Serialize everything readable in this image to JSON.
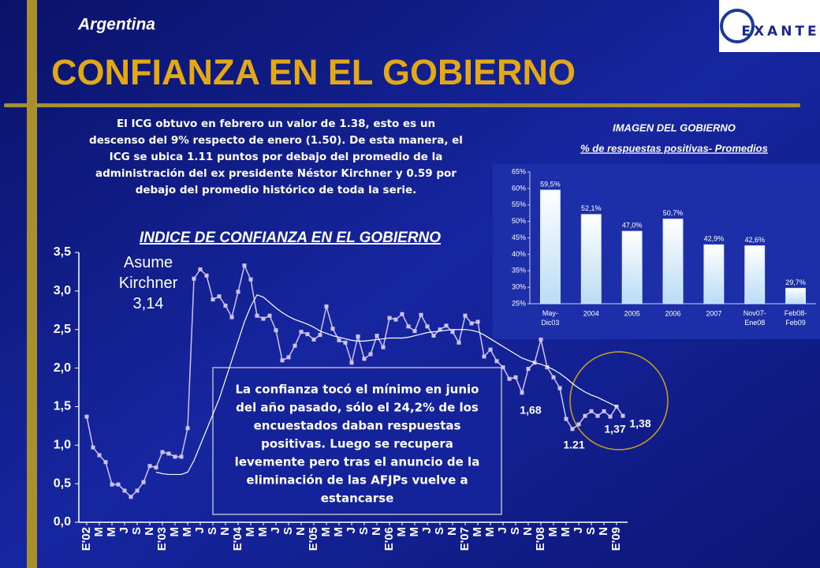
{
  "header": {
    "country": "Argentina",
    "title": "CONFIANZA EN EL GOBIERNO",
    "logo": "EXANTE"
  },
  "summary": [
    "El ICG obtuvo en febrero un valor de 1.38, esto es un",
    "descenso del 9% respecto de enero (1.50). De esta manera, el",
    "ICG se ubica 1.11 puntos por debajo del promedio de la",
    "administración del ex presidente Néstor Kirchner y 0.59 por",
    "debajo del promedio histórico de toda la serie."
  ],
  "callout": [
    "La confianza tocó el mínimo en junio",
    "del año pasado, sólo el 24,2% de los",
    "encuestados daban respuestas",
    "positivas. Luego se recupera",
    "levemente pero tras el anuncio de la",
    "eliminación de las AFJPs vuelve a",
    "estancarse"
  ],
  "chart_data": [
    {
      "type": "line",
      "title": "INDICE DE CONFIANZA EN EL GOBIERNO",
      "categories": [
        "E'02",
        null,
        "M",
        null,
        "M",
        null,
        "J",
        null,
        "S",
        null,
        "N",
        null,
        "E'03",
        null,
        "M",
        null,
        "M",
        null,
        "J",
        null,
        "S",
        null,
        "N",
        null,
        "E'04",
        null,
        "M",
        null,
        "M",
        null,
        "J",
        null,
        "S",
        null,
        "N",
        null,
        "E'05",
        null,
        "M",
        null,
        "M",
        null,
        "J",
        null,
        "S",
        null,
        "N",
        null,
        "E'06",
        null,
        "M",
        null,
        "M",
        null,
        "J",
        null,
        "S",
        null,
        "N",
        null,
        "E'07",
        null,
        "M",
        null,
        "M",
        null,
        "J",
        null,
        "S",
        null,
        "N",
        null,
        "E'08",
        null,
        "M",
        null,
        "M",
        null,
        "J",
        null,
        "S",
        null,
        "N",
        null,
        "E'09",
        null
      ],
      "series": [
        {
          "color": "#cfc2f2",
          "marker": true,
          "values": [
            1.37,
            0.97,
            0.87,
            0.78,
            0.49,
            0.49,
            0.41,
            0.33,
            0.41,
            0.52,
            0.73,
            0.71,
            0.91,
            0.89,
            0.85,
            0.85,
            1.22,
            3.16,
            3.28,
            3.2,
            2.89,
            2.93,
            2.81,
            2.66,
            2.99,
            3.33,
            3.15,
            2.68,
            2.64,
            2.68,
            2.49,
            2.1,
            2.14,
            2.29,
            2.47,
            2.44,
            2.37,
            2.43,
            2.8,
            2.51,
            2.36,
            2.33,
            2.07,
            2.41,
            2.12,
            2.18,
            2.42,
            2.27,
            2.65,
            2.63,
            2.7,
            2.54,
            2.48,
            2.69,
            2.54,
            2.42,
            2.5,
            2.55,
            2.47,
            2.33,
            2.68,
            2.58,
            2.6,
            2.15,
            2.24,
            2.09,
            2.01,
            1.86,
            1.88,
            1.68,
            1.99,
            2.07,
            2.37,
            2.01,
            1.88,
            1.74,
            1.34,
            1.21,
            1.27,
            1.38,
            1.44,
            1.38,
            1.44,
            1.37,
            1.5,
            1.38
          ]
        },
        {
          "color": "#ffffff",
          "marker": false,
          "values": [
            null,
            null,
            null,
            null,
            null,
            null,
            null,
            null,
            null,
            null,
            null,
            0.65,
            0.63,
            0.62,
            0.62,
            0.62,
            0.65,
            0.8,
            1.0,
            1.2,
            1.4,
            1.6,
            1.85,
            2.1,
            2.35,
            2.6,
            2.8,
            2.95,
            2.92,
            2.85,
            2.78,
            2.72,
            2.67,
            2.63,
            2.6,
            2.57,
            2.53,
            2.48,
            2.45,
            2.42,
            2.4,
            2.38,
            2.36,
            2.35,
            2.35,
            2.36,
            2.37,
            2.38,
            2.39,
            2.39,
            2.39,
            2.4,
            2.42,
            2.44,
            2.46,
            2.47,
            2.48,
            2.49,
            2.5,
            2.5,
            2.5,
            2.49,
            2.47,
            2.43,
            2.38,
            2.33,
            2.28,
            2.23,
            2.18,
            2.13,
            2.1,
            2.07,
            2.05,
            2.02,
            1.98,
            1.93,
            1.87,
            1.8,
            1.74,
            1.69,
            1.65,
            1.62,
            1.58,
            1.54,
            1.5,
            null
          ]
        }
      ],
      "ylim": [
        0,
        3.5
      ],
      "yticks": [
        {
          "value": 0,
          "label": "0,0"
        },
        {
          "value": 0.5,
          "label": "0,5"
        },
        {
          "value": 1,
          "label": "1,0"
        },
        {
          "value": 1.5,
          "label": "1,5"
        },
        {
          "value": 2,
          "label": "2,0"
        },
        {
          "value": 2.5,
          "label": "2,5"
        },
        {
          "value": 3,
          "label": "3,0"
        },
        {
          "value": 3.5,
          "label": "3,5"
        }
      ],
      "annotations": [
        "Asume Kirchner 3,14",
        "1,68",
        "1.21",
        "1,37",
        "1,38"
      ]
    },
    {
      "type": "bar",
      "title": "IMAGEN DEL GOBIERNO",
      "subtitle": "% de respuestas positivas- Promedios",
      "categories": [
        "May-Dic03",
        "2004",
        "2005",
        "2006",
        "2007",
        "Nov07-Ene08",
        "Feb08-Feb09"
      ],
      "values": [
        59.5,
        52.1,
        47.0,
        50.7,
        42.9,
        42.6,
        29.7
      ],
      "value_labels": [
        "59,5%",
        "52,1%",
        "47,0%",
        "50,7%",
        "42,9%",
        "42,6%",
        "29,7%"
      ],
      "color": "#d8ecfb",
      "ylim": [
        25,
        65
      ],
      "yticks": [
        {
          "value": 25,
          "label": "25%"
        },
        {
          "value": 30,
          "label": "30%"
        },
        {
          "value": 35,
          "label": "35%"
        },
        {
          "value": 40,
          "label": "40%"
        },
        {
          "value": 45,
          "label": "45%"
        },
        {
          "value": 50,
          "label": "50%"
        },
        {
          "value": 55,
          "label": "55%"
        },
        {
          "value": 60,
          "label": "60%"
        },
        {
          "value": 65,
          "label": "65%"
        }
      ]
    }
  ]
}
